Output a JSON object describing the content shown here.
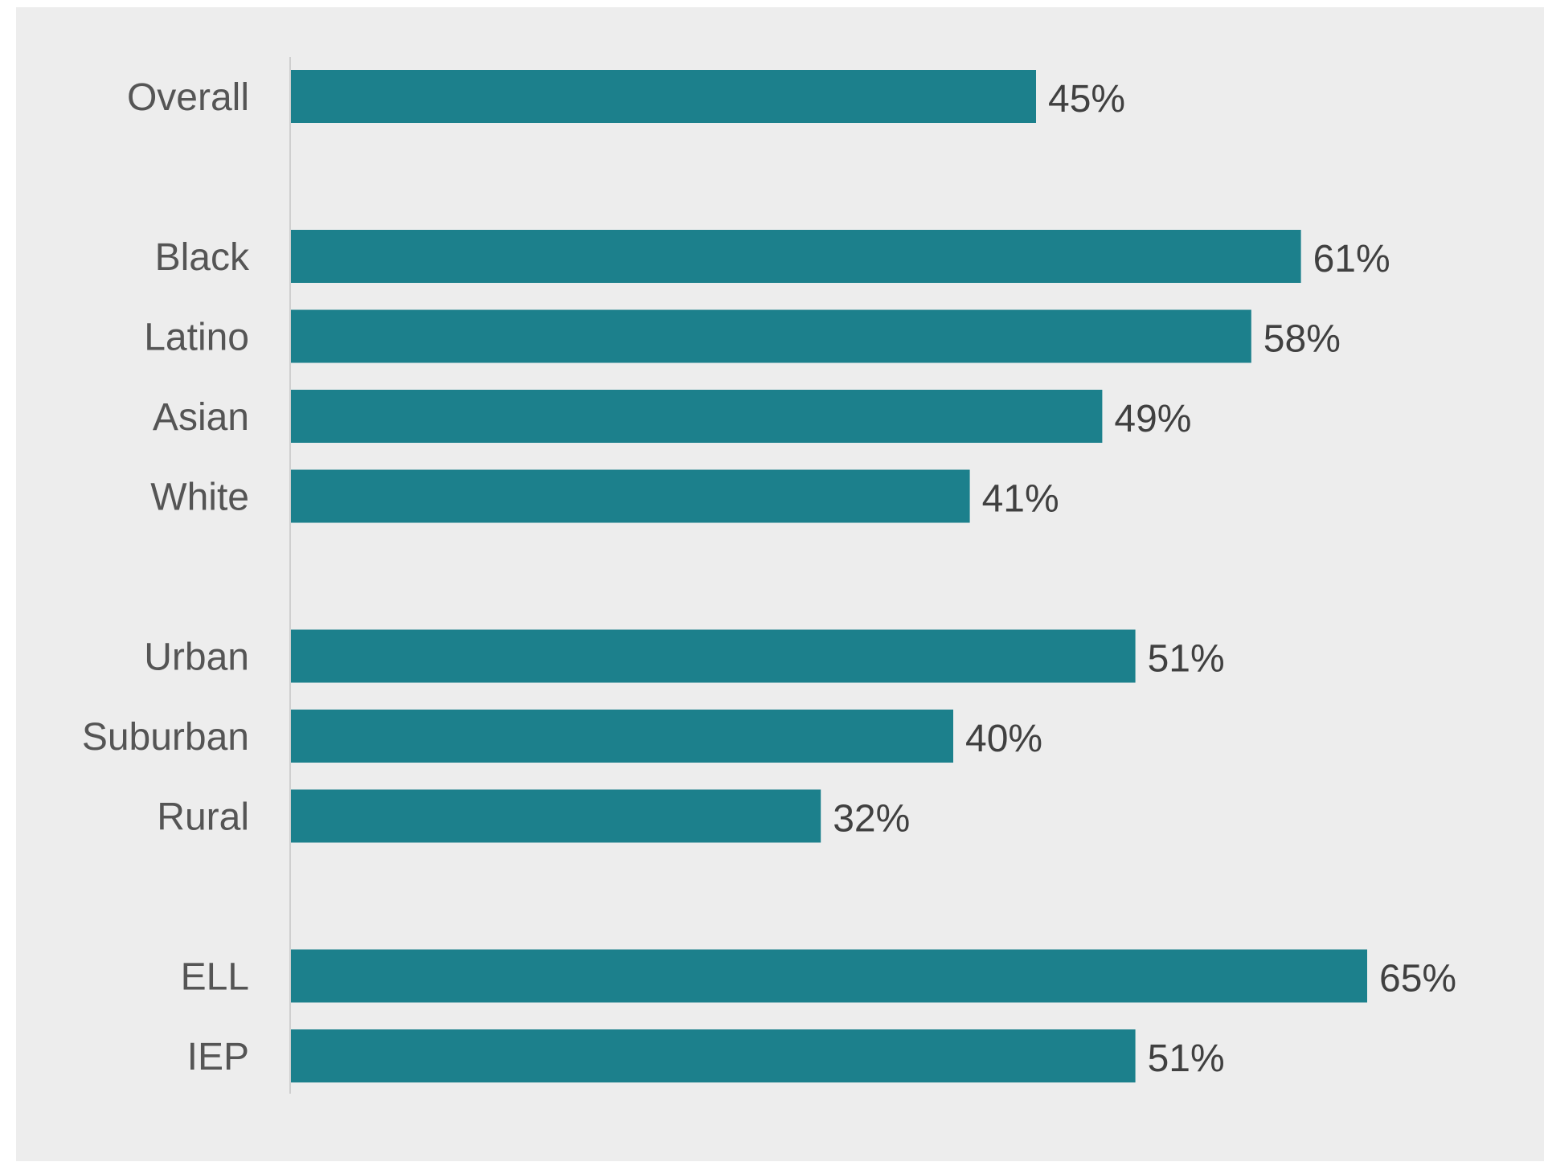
{
  "chart_data": {
    "type": "bar",
    "orientation": "horizontal",
    "categories": [
      "Overall",
      "Black",
      "Latino",
      "Asian",
      "White",
      "Urban",
      "Suburban",
      "Rural",
      "ELL",
      "IEP"
    ],
    "values": [
      45,
      61,
      58,
      49,
      41,
      51,
      40,
      32,
      65,
      51
    ],
    "value_labels": [
      "45%",
      "61%",
      "58%",
      "49%",
      "41%",
      "51%",
      "40%",
      "32%",
      "65%",
      "51%"
    ],
    "groups": [
      [
        "Overall"
      ],
      [
        "Black",
        "Latino",
        "Asian",
        "White"
      ],
      [
        "Urban",
        "Suburban",
        "Rural"
      ],
      [
        "ELL",
        "IEP"
      ]
    ],
    "xlim": [
      0,
      65
    ],
    "title": "",
    "xlabel": "",
    "ylabel": "",
    "grid": false,
    "legend": "none",
    "colors": {
      "bar": "#1c808c",
      "background": "#ededed",
      "axis": "#cfcfcf"
    }
  }
}
